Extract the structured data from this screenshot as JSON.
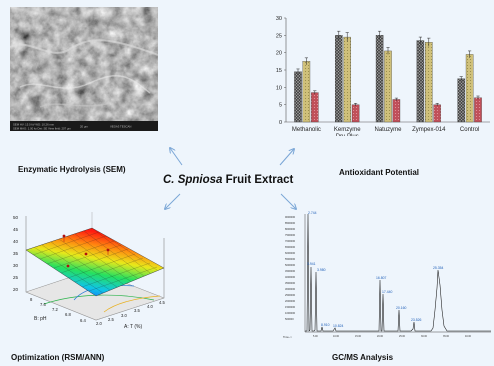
{
  "center": {
    "species": "C. Spniosa",
    "rest": " Fruit Extract"
  },
  "panels": {
    "sem": {
      "caption": "Enzymatic Hydrolysis  (SEM)"
    },
    "antioxidant": {
      "caption": "Antioxidant Potential"
    },
    "optimization": {
      "caption": "Optimization (RSM/ANN)",
      "x_axis_label": "B: pH",
      "y_axis_label": "A: T (%)",
      "z_ticks": [
        "50",
        "45",
        "40",
        "35",
        "30",
        "25",
        "20"
      ],
      "ph_ticks": [
        "6.4",
        "6.8",
        "7.2",
        "7.6",
        "8"
      ],
      "t_ticks": [
        "4.5",
        "4.0",
        "3.5",
        "3.0",
        "2.5",
        "2.0"
      ]
    },
    "gcms": {
      "caption": "GC/MS Analysis",
      "peak_labels": [
        "2.744",
        "3.941",
        "3.980",
        "8.910",
        "10.824",
        "16.807",
        "17.440",
        "20.160",
        "23.526",
        "25.354"
      ]
    }
  },
  "chart_data": {
    "type": "bar",
    "categories": [
      "Methanolic",
      "Kemzyme\nDry-Plus",
      "Natuzyme",
      "Zympex-014",
      "Control"
    ],
    "category_labels": [
      "Methanolic",
      "Kemzyme",
      "Dry-Plus",
      "Natuzyme",
      "Zympex-014",
      "Control"
    ],
    "series": [
      {
        "values": [
          14.5,
          25,
          25,
          23.5,
          12.5
        ],
        "errors": [
          0.8,
          1.2,
          1.2,
          1.0,
          0.6
        ],
        "color": "#4a4a4a"
      },
      {
        "values": [
          17.5,
          24.5,
          20.5,
          23,
          19.5
        ],
        "errors": [
          1.0,
          1.3,
          1.0,
          1.2,
          1.0
        ],
        "color": "#cfc07a"
      },
      {
        "values": [
          8.5,
          5,
          6.5,
          5,
          7
        ],
        "errors": [
          0.5,
          0.4,
          0.4,
          0.4,
          0.5
        ],
        "color": "#c0505a"
      }
    ],
    "ylim": [
      0,
      30
    ],
    "yticks": [
      0,
      5,
      10,
      15,
      20,
      25,
      30
    ],
    "legend": "none"
  }
}
